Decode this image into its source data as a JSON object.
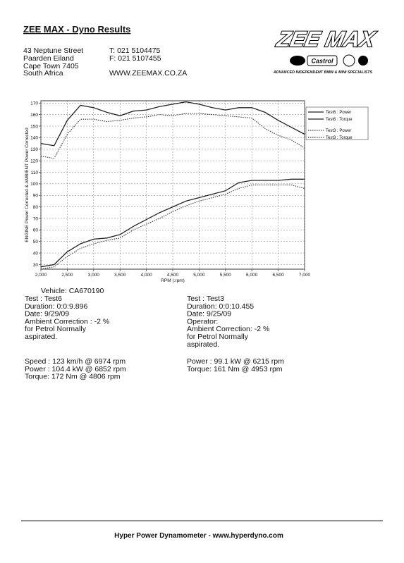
{
  "header": {
    "title": "ZEE MAX - Dyno Results",
    "address": [
      "43 Neptune Street",
      "Paarden Eiland",
      "Cape Town 7405",
      "South Africa"
    ],
    "contact": [
      "T: 021 5104475",
      "F: 021 5107455",
      "WWW.ZEEMAX.CO.ZA"
    ]
  },
  "logo": {
    "name": "ZEE MAX",
    "badge": "Castrol",
    "tagline": "ADVANCED INDEPENDENT BMW & MINI SPECIALISTS"
  },
  "chart_data": {
    "type": "line",
    "ylabel": "ENGINE Power Corrected & AMBIENT Power Corrected",
    "xlabel": "RPM (.rpm)",
    "x": [
      2000,
      2250,
      2500,
      2750,
      3000,
      3250,
      3500,
      3750,
      4000,
      4250,
      4500,
      4750,
      5000,
      5250,
      5500,
      5750,
      6000,
      6250,
      6500,
      6750,
      7000
    ],
    "xlim": [
      2000,
      7000
    ],
    "xticks": [
      {
        "value": 2000,
        "label": "2,000"
      },
      {
        "value": 2500,
        "label": "2,500"
      },
      {
        "value": 3000,
        "label": "3,000"
      },
      {
        "value": 3500,
        "label": "3,500"
      },
      {
        "value": 4000,
        "label": "4,000"
      },
      {
        "value": 4500,
        "label": "4,500"
      },
      {
        "value": 5000,
        "label": "5,000"
      },
      {
        "value": 5500,
        "label": "5,500"
      },
      {
        "value": 6000,
        "label": "6,000"
      },
      {
        "value": 6500,
        "label": "6,500"
      },
      {
        "value": 7000,
        "label": "7,000"
      }
    ],
    "ylim": [
      26,
      172
    ],
    "yticks": [
      30,
      40,
      50,
      60,
      70,
      80,
      90,
      100,
      110,
      120,
      130,
      140,
      150,
      160,
      170
    ],
    "grid": true,
    "legend": "right",
    "series": [
      {
        "name": "Test6 : Power",
        "color": "#222222",
        "style": "solid",
        "values": [
          28,
          30,
          41,
          48,
          52,
          53,
          56,
          63,
          69,
          75,
          80,
          85,
          88,
          91,
          94,
          101,
          103,
          103,
          103,
          104,
          104
        ]
      },
      {
        "name": "Test6 : Torque",
        "color": "#222222",
        "style": "solid",
        "values": [
          135,
          133,
          155,
          168,
          166,
          162,
          159,
          163,
          164,
          167,
          169,
          171,
          169,
          166,
          164,
          166,
          166,
          162,
          155,
          149,
          143
        ]
      },
      {
        "name": "Test3 : Power",
        "color": "#333333",
        "style": "dotted",
        "values": [
          26,
          28,
          37,
          44,
          48,
          51,
          53,
          60,
          65,
          70,
          76,
          81,
          85,
          88,
          91,
          96,
          99,
          99,
          99,
          99,
          96
        ]
      },
      {
        "name": "Test3 : Torque",
        "color": "#333333",
        "style": "dotted",
        "values": [
          124,
          122,
          143,
          156,
          156,
          154,
          155,
          157,
          158,
          160,
          159,
          161,
          161,
          160,
          159,
          158,
          157,
          148,
          142,
          138,
          131
        ]
      }
    ]
  },
  "vehicle": "Vehicle: CA670190",
  "test_left": [
    "Test  : Test6",
    "Duration: 0:0:9.896",
    "Date:  9/29/09",
    "Ambient Correction : -2 %",
    " for Petrol Normally",
    "aspirated."
  ],
  "test_right": [
    "Test  : Test3",
    "Duration: 0:0:10.455",
    "Date:  9/25/09",
    "Operator:",
    "Ambient Correction: -2 %",
    " for Petrol Normally",
    "aspirated."
  ],
  "summary_left": [
    "Speed : 123 km/h @ 6974 rpm",
    "Power : 104.4 kW @ 6852 rpm",
    "Torque: 172 Nm @ 4806 rpm"
  ],
  "summary_right": [
    "Power : 99.1 kW @ 6215 rpm",
    "Torque: 161 Nm @ 4953 rpm"
  ],
  "footer": "Hyper Power Dynamometer  -  www.hyperdyno.com"
}
